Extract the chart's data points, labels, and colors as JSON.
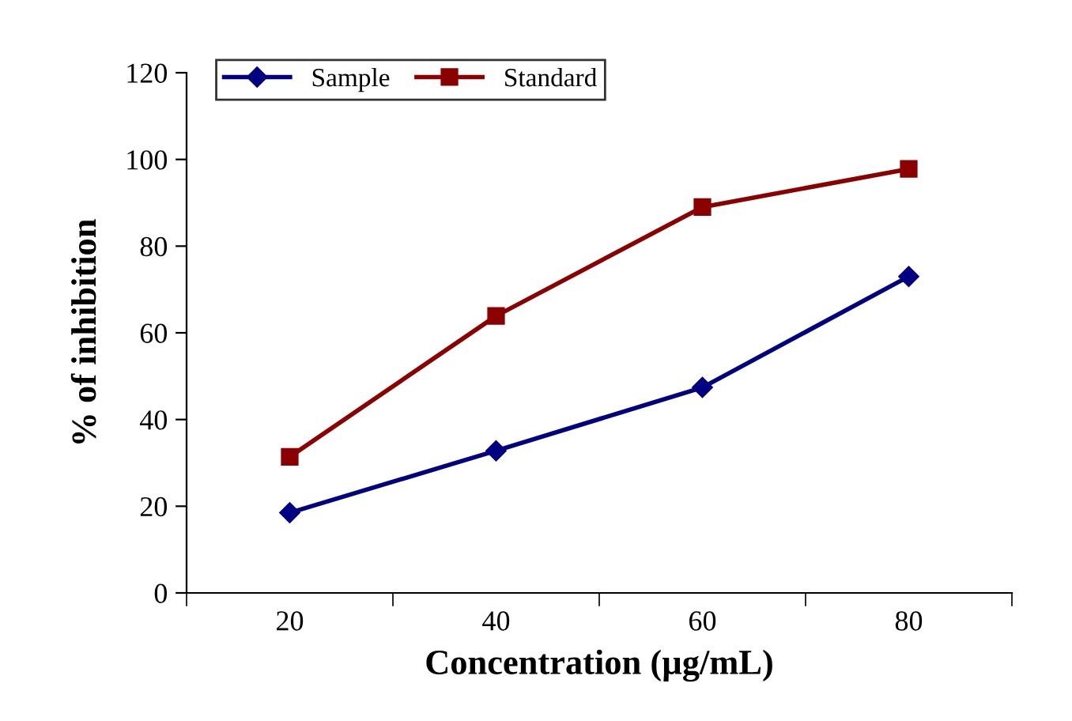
{
  "chart_data": {
    "type": "line",
    "xlabel": "Concentration (µg/mL)",
    "ylabel": "% of inhibition",
    "categories": [
      "20",
      "40",
      "60",
      "80"
    ],
    "series": [
      {
        "name": "Sample",
        "color": "#000080",
        "marker": "diamond",
        "values": [
          18.5,
          32.8,
          47.4,
          73
        ]
      },
      {
        "name": "Standard",
        "color": "#8b0000",
        "marker": "square",
        "values": [
          31.4,
          63.9,
          89,
          97.8
        ]
      }
    ],
    "ylim": [
      0,
      120
    ],
    "yticks": [
      0,
      20,
      40,
      60,
      80,
      100,
      120
    ],
    "grid": false,
    "legend": "top left",
    "line_style": "solid"
  }
}
